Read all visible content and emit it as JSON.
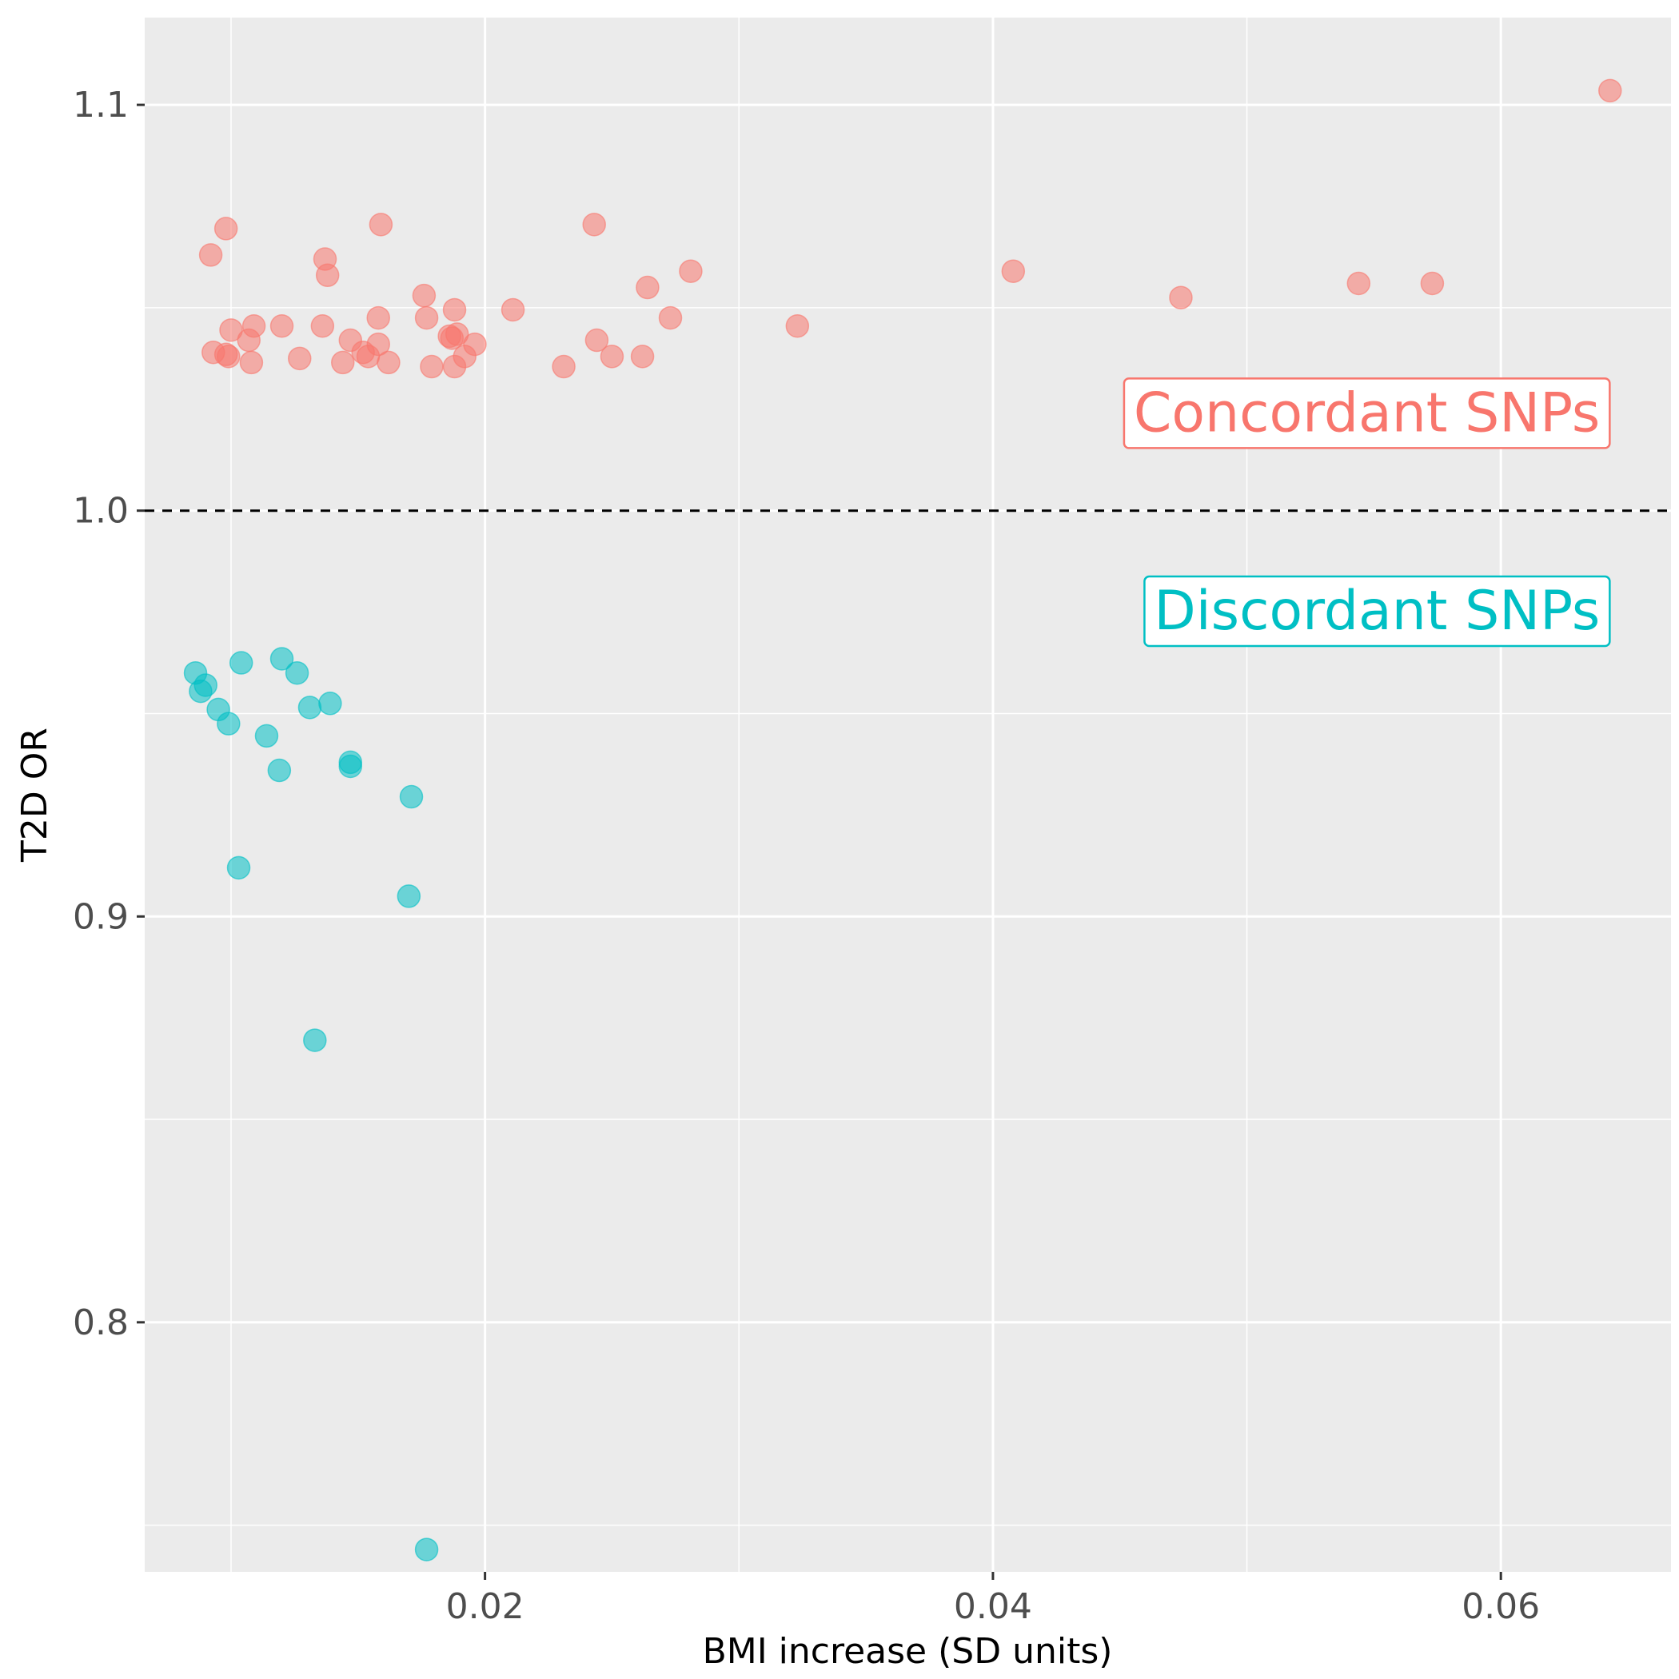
{
  "chart_data": {
    "type": "scatter",
    "title": "",
    "xlabel": "BMI increase (SD units)",
    "ylabel": "T2D OR",
    "xlim": [
      0.0066,
      0.0667
    ],
    "ylim": [
      0.7385,
      1.1215
    ],
    "x_ticks": [
      {
        "value": 0.02,
        "label": "0.02"
      },
      {
        "value": 0.04,
        "label": "0.04"
      },
      {
        "value": 0.06,
        "label": "0.06"
      }
    ],
    "x_minor_grid": [
      0.01,
      0.03,
      0.05
    ],
    "y_ticks": [
      {
        "value": 0.8,
        "label": "0.8"
      },
      {
        "value": 0.9,
        "label": "0.9"
      },
      {
        "value": 1.0,
        "label": "1.0"
      },
      {
        "value": 1.1,
        "label": "1.1"
      }
    ],
    "y_minor_grid": [
      0.75,
      0.85,
      0.95,
      1.05
    ],
    "grid": true,
    "legend": "none",
    "reference_line": {
      "y": 1.0,
      "style": "dashed",
      "color": "#000000"
    },
    "series": [
      {
        "color": "#F8766D",
        "points": [
          [
            0.0092,
            1.063
          ],
          [
            0.0098,
            1.0695
          ],
          [
            0.0093,
            1.039
          ],
          [
            0.0098,
            1.0385
          ],
          [
            0.01,
            1.0445
          ],
          [
            0.0099,
            1.038
          ],
          [
            0.0107,
            1.042
          ],
          [
            0.0108,
            1.0365
          ],
          [
            0.0109,
            1.0455
          ],
          [
            0.012,
            1.0455
          ],
          [
            0.0127,
            1.0375
          ],
          [
            0.0136,
            1.0455
          ],
          [
            0.0137,
            1.062
          ],
          [
            0.0138,
            1.058
          ],
          [
            0.0144,
            1.0365
          ],
          [
            0.0147,
            1.042
          ],
          [
            0.0152,
            1.039
          ],
          [
            0.0154,
            1.038
          ],
          [
            0.0158,
            1.0475
          ],
          [
            0.0158,
            1.041
          ],
          [
            0.0159,
            1.0705
          ],
          [
            0.0162,
            1.0365
          ],
          [
            0.0176,
            1.053
          ],
          [
            0.0177,
            1.0475
          ],
          [
            0.0179,
            1.0355
          ],
          [
            0.0186,
            1.043
          ],
          [
            0.0187,
            1.0425
          ],
          [
            0.0188,
            1.0495
          ],
          [
            0.0188,
            1.0355
          ],
          [
            0.0189,
            1.0435
          ],
          [
            0.0192,
            1.038
          ],
          [
            0.0196,
            1.041
          ],
          [
            0.0211,
            1.0495
          ],
          [
            0.0231,
            1.0355
          ],
          [
            0.0243,
            1.0705
          ],
          [
            0.0244,
            1.042
          ],
          [
            0.025,
            1.038
          ],
          [
            0.0262,
            1.038
          ],
          [
            0.0264,
            1.055
          ],
          [
            0.0273,
            1.0475
          ],
          [
            0.0281,
            1.059
          ],
          [
            0.0323,
            1.0455
          ],
          [
            0.0408,
            1.059
          ],
          [
            0.0474,
            1.0525
          ],
          [
            0.0544,
            1.056
          ],
          [
            0.0573,
            1.056
          ],
          [
            0.0643,
            1.1035
          ]
        ]
      },
      {
        "color": "#00BFC4",
        "points": [
          [
            0.0086,
            0.96
          ],
          [
            0.0088,
            0.9555
          ],
          [
            0.009,
            0.957
          ],
          [
            0.0095,
            0.951
          ],
          [
            0.0099,
            0.9475
          ],
          [
            0.0103,
            0.912
          ],
          [
            0.0104,
            0.9625
          ],
          [
            0.0114,
            0.9445
          ],
          [
            0.0119,
            0.936
          ],
          [
            0.012,
            0.9635
          ],
          [
            0.0126,
            0.96
          ],
          [
            0.0131,
            0.9515
          ],
          [
            0.0133,
            0.8695
          ],
          [
            0.0139,
            0.9525
          ],
          [
            0.0147,
            0.938
          ],
          [
            0.0147,
            0.937
          ],
          [
            0.0171,
            0.9295
          ],
          [
            0.017,
            0.905
          ],
          [
            0.0177,
            0.744
          ]
        ]
      }
    ],
    "annotations": [
      {
        "text": "Concordant SNPs",
        "color": "#F8766D",
        "x": 0.06435,
        "y": 1.0243,
        "align": "right"
      },
      {
        "text": "Discordant SNPs",
        "color": "#00BFC4",
        "x": 0.06435,
        "y": 0.9755,
        "align": "right"
      }
    ]
  }
}
